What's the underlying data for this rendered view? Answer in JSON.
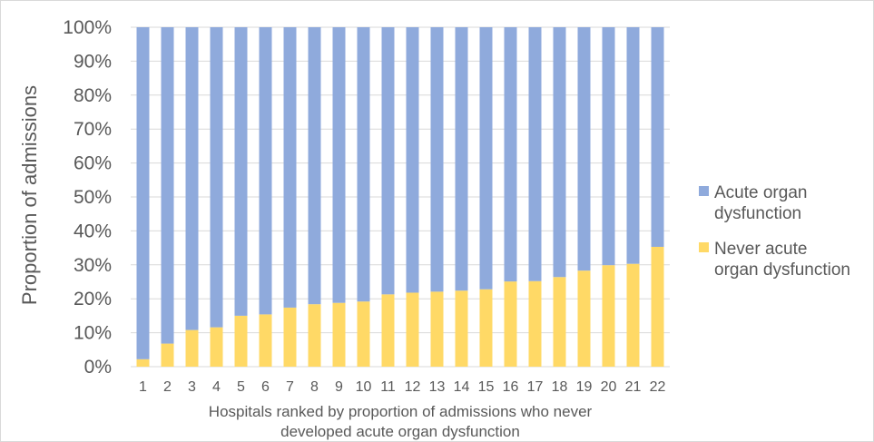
{
  "chart_data": {
    "type": "bar",
    "stacked": true,
    "percent_stacked": true,
    "title": "",
    "ylabel": "Proportion of admissions",
    "xlabel_lines": [
      "Hospitals ranked by proportion of admissions who never",
      "developed acute organ dysfunction"
    ],
    "ylim": [
      0,
      100
    ],
    "y_ticks": [
      "0%",
      "10%",
      "20%",
      "30%",
      "40%",
      "50%",
      "60%",
      "70%",
      "80%",
      "90%",
      "100%"
    ],
    "grid": true,
    "legend_position": "right",
    "categories": [
      "1",
      "2",
      "3",
      "4",
      "5",
      "6",
      "7",
      "8",
      "9",
      "10",
      "11",
      "12",
      "13",
      "14",
      "15",
      "16",
      "17",
      "18",
      "19",
      "20",
      "21",
      "22"
    ],
    "series": [
      {
        "name": "Never acute organ dysfunction",
        "legend_lines": [
          "Never acute",
          "organ dysfunction"
        ],
        "color": "#ffd966",
        "values": [
          2.2,
          6.8,
          10.8,
          11.6,
          15.0,
          15.4,
          17.4,
          18.4,
          18.8,
          19.2,
          21.3,
          21.8,
          22.1,
          22.4,
          22.8,
          25.1,
          25.2,
          26.4,
          28.3,
          29.9,
          30.3,
          35.3
        ]
      },
      {
        "name": "Acute organ dysfunction",
        "legend_lines": [
          "Acute organ",
          "dysfunction"
        ],
        "color": "#8faadc",
        "values": [
          97.8,
          93.2,
          89.2,
          88.4,
          85.0,
          84.6,
          82.6,
          81.6,
          81.2,
          80.8,
          78.7,
          78.2,
          77.9,
          77.6,
          77.2,
          74.9,
          74.8,
          73.6,
          71.7,
          70.1,
          69.7,
          64.7
        ]
      }
    ]
  },
  "colors": {
    "grid": "#d9d9d9",
    "text": "#595959"
  }
}
